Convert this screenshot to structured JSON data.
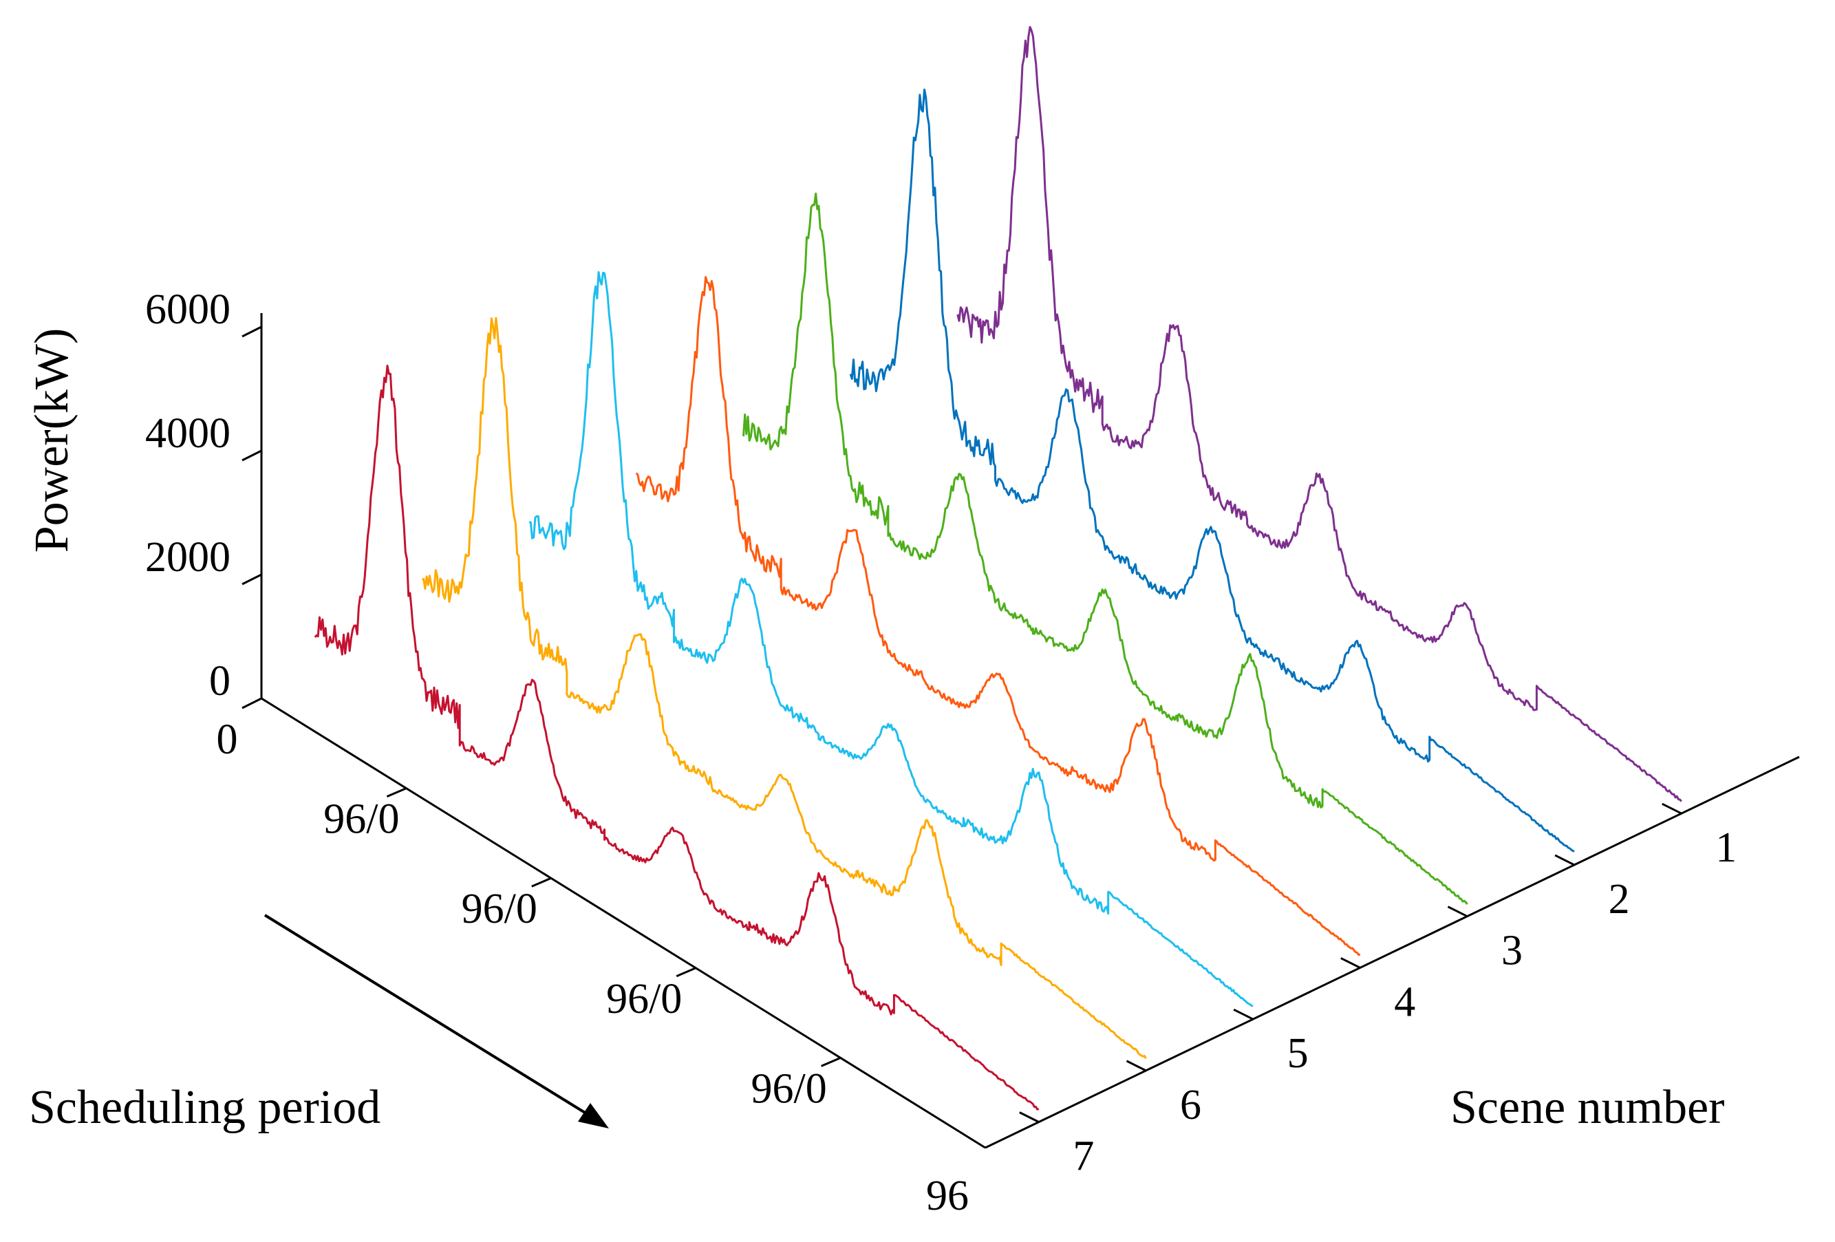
{
  "chart_data": {
    "type": "line",
    "title": "",
    "zlabel": "Power(kW)",
    "xlabel": "Scheduling period",
    "ylabel": "Scene number",
    "zlim": [
      0,
      6000
    ],
    "z_ticks": [
      "0",
      "2000",
      "4000",
      "6000"
    ],
    "period_ticks": [
      "0",
      "96/0",
      "96/0",
      "96/0",
      "96/0",
      "96"
    ],
    "scene_ticks": [
      "1",
      "2",
      "3",
      "4",
      "5",
      "6",
      "7"
    ],
    "periods_per_day": 96,
    "days": 5,
    "series": [
      {
        "name": "Scene 1",
        "scene": 1,
        "color": "#7E2F8E",
        "day_peak": [
          6000,
          2800,
          1800,
          1200,
          500
        ]
      },
      {
        "name": "Scene 2",
        "scene": 2,
        "color": "#0072BD",
        "day_peak": [
          5800,
          2500,
          1800,
          1400,
          500
        ]
      },
      {
        "name": "Scene 3",
        "scene": 3,
        "color": "#4DAF1A",
        "day_peak": [
          5000,
          2000,
          1600,
          2000,
          500
        ]
      },
      {
        "name": "Scene 4",
        "scene": 4,
        "color": "#FF5A0F",
        "day_peak": [
          4500,
          2000,
          1100,
          1800,
          500
        ]
      },
      {
        "name": "Scene 5",
        "scene": 5,
        "color": "#1EBEEF",
        "day_peak": [
          5500,
          2000,
          1100,
          1800,
          500
        ]
      },
      {
        "name": "Scene 6",
        "scene": 6,
        "color": "#FFAA00",
        "day_peak": [
          5500,
          2000,
          1100,
          1800,
          500
        ]
      },
      {
        "name": "Scene 7",
        "scene": 7,
        "color": "#C4122F",
        "day_peak": [
          5500,
          2000,
          1100,
          1800,
          500
        ]
      }
    ]
  }
}
